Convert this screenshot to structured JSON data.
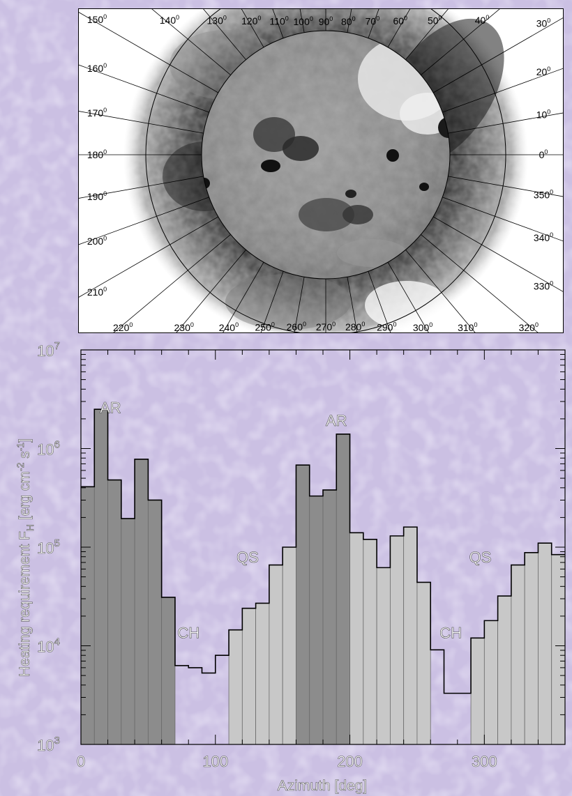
{
  "image_panel": {
    "azimuth_labels": [
      "0",
      "10",
      "20",
      "30",
      "40",
      "50",
      "60",
      "70",
      "80",
      "90",
      "100",
      "110",
      "120",
      "130",
      "140",
      "150",
      "160",
      "170",
      "180",
      "190",
      "200",
      "210",
      "220",
      "230",
      "240",
      "250",
      "260",
      "270",
      "280",
      "290",
      "300",
      "310",
      "320",
      "330",
      "340",
      "350"
    ],
    "degree_symbol": "0"
  },
  "chart_data": {
    "type": "bar",
    "xlabel": "Azimuth  [deg]",
    "ylabel": "Heating requirement F",
    "ylabel_sub": "H",
    "ylabel_units": " [erg cm",
    "ylabel_units_sup1": "-2",
    "ylabel_units_mid": " s",
    "ylabel_units_sup2": "-1",
    "ylabel_units_end": "]",
    "xlim": [
      0,
      360
    ],
    "ylim": [
      1000,
      10000000
    ],
    "yscale": "log",
    "x_ticks": [
      "0",
      "100",
      "200",
      "300"
    ],
    "y_ticks": [
      {
        "base": "10",
        "exp": "3"
      },
      {
        "base": "10",
        "exp": "4"
      },
      {
        "base": "10",
        "exp": "5"
      },
      {
        "base": "10",
        "exp": "6"
      },
      {
        "base": "10",
        "exp": "7"
      }
    ],
    "bin_width": 10,
    "x_start": [
      0,
      10,
      20,
      30,
      40,
      50,
      60,
      70,
      80,
      90,
      100,
      110,
      120,
      130,
      140,
      150,
      160,
      170,
      180,
      190,
      200,
      210,
      220,
      230,
      240,
      250,
      260,
      270,
      280,
      290,
      300,
      310,
      320,
      330,
      340,
      350
    ],
    "values": [
      410000,
      2500000,
      480000,
      195000,
      780000,
      300000,
      31000,
      6300,
      6000,
      5300,
      8000,
      14500,
      24000,
      27000,
      66000,
      100000,
      680000,
      330000,
      380000,
      1400000,
      140000,
      120000,
      62000,
      130000,
      160000,
      44000,
      9100,
      3300,
      3300,
      12000,
      18000,
      32000,
      66000,
      88000,
      110000,
      84000
    ],
    "categories": [
      "AR",
      "AR",
      "AR",
      "AR",
      "AR",
      "AR",
      "AR",
      "CH",
      "CH",
      "CH",
      "CH",
      "QS",
      "QS",
      "QS",
      "QS",
      "QS",
      "AR",
      "AR",
      "AR",
      "AR",
      "QS",
      "QS",
      "QS",
      "QS",
      "QS",
      "QS",
      "CH",
      "CH",
      "CH",
      "QS",
      "QS",
      "QS",
      "QS",
      "QS",
      "QS",
      "QS"
    ],
    "region_labels": [
      {
        "text": "AR",
        "x": 22,
        "y": 2300000
      },
      {
        "text": "AR",
        "x": 190,
        "y": 1700000
      },
      {
        "text": "CH",
        "x": 80,
        "y": 12000
      },
      {
        "text": "CH",
        "x": 275,
        "y": 12000
      },
      {
        "text": "QS",
        "x": 124,
        "y": 70000
      },
      {
        "text": "QS",
        "x": 297,
        "y": 70000
      }
    ],
    "colors": {
      "AR": "#8c8c8c",
      "QS": "#c8c8c8",
      "CH": "none",
      "outline": "#000000"
    }
  }
}
